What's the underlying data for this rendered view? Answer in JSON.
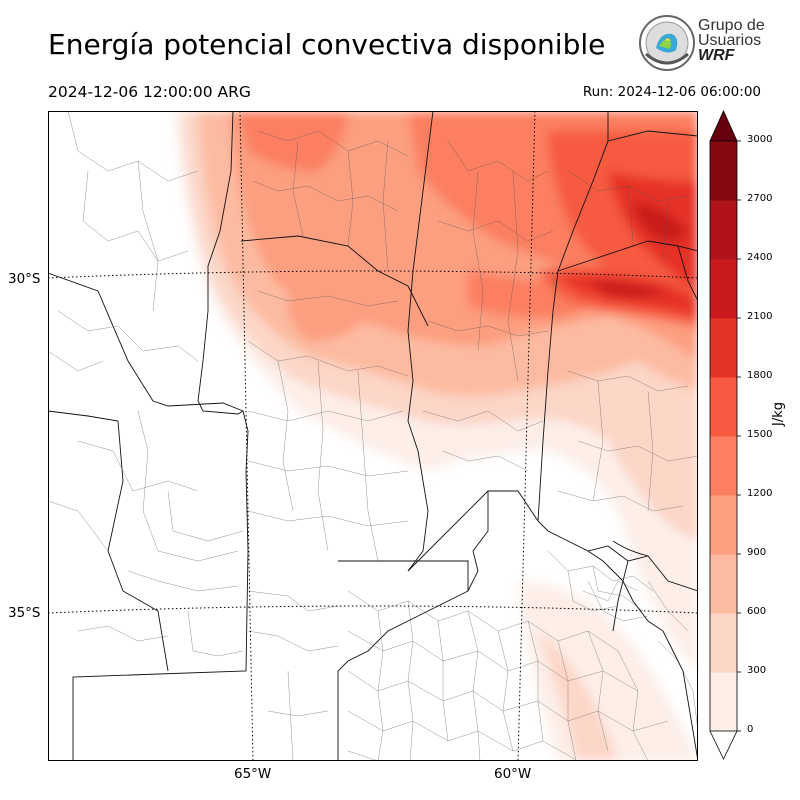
{
  "title": "Energía potencial convectiva disponible",
  "valid_time": "2024-12-06 12:00:00 ARG",
  "run_time": "Run: 2024-12-06 06:00:00",
  "logo": {
    "line1": "Grupo de",
    "line2": "Usuarios",
    "line3": "WRF"
  },
  "map": {
    "lat_labels": [
      "30°S",
      "35°S"
    ],
    "lon_labels": [
      "65°W",
      "60°W"
    ],
    "grid": true
  },
  "colorbar": {
    "unit": "J/kg",
    "ticks": [
      "0",
      "300",
      "600",
      "900",
      "1200",
      "1500",
      "1800",
      "2100",
      "2400",
      "2700",
      "3000"
    ],
    "colors": [
      "#fdeee8",
      "#fcd6c7",
      "#fcbba1",
      "#fc9e80",
      "#fb7f60",
      "#f65a41",
      "#e63328",
      "#cb1a1d",
      "#b01318",
      "#860813"
    ],
    "extend": "max",
    "over_color": "#67000d"
  }
}
